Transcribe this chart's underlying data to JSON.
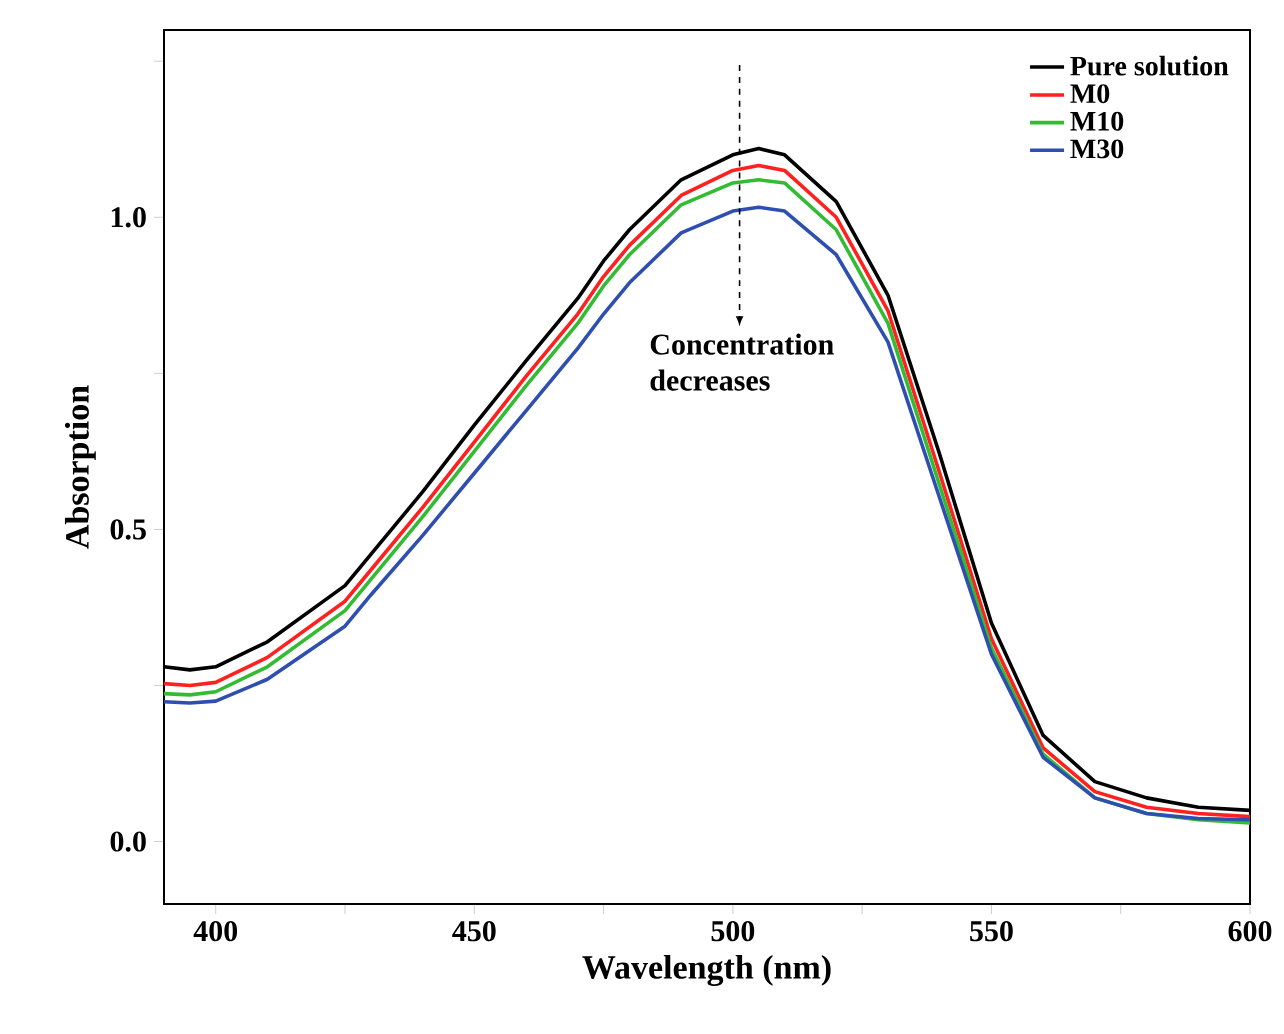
{
  "chart_data": {
    "type": "line",
    "xlabel": "Wavelength (nm)",
    "ylabel": "Absorption",
    "x": [
      390,
      395,
      400,
      410,
      425,
      430,
      440,
      450,
      460,
      470,
      475,
      480,
      490,
      500,
      505,
      510,
      520,
      530,
      540,
      550,
      560,
      570,
      580,
      590,
      600
    ],
    "series": [
      {
        "name": "Pure solution",
        "color": "#000000",
        "values": [
          0.28,
          0.275,
          0.28,
          0.32,
          0.41,
          0.46,
          0.56,
          0.667,
          0.77,
          0.87,
          0.93,
          0.98,
          1.06,
          1.1,
          1.11,
          1.1,
          1.025,
          0.875,
          0.62,
          0.35,
          0.17,
          0.096,
          0.07,
          0.055,
          0.05
        ]
      },
      {
        "name": "M0",
        "color": "#ff2020",
        "values": [
          0.253,
          0.25,
          0.255,
          0.295,
          0.385,
          0.435,
          0.535,
          0.64,
          0.745,
          0.845,
          0.905,
          0.955,
          1.035,
          1.075,
          1.083,
          1.075,
          1.0,
          0.85,
          0.59,
          0.325,
          0.15,
          0.08,
          0.055,
          0.045,
          0.04
        ]
      },
      {
        "name": "M10",
        "color": "#33bb33",
        "values": [
          0.237,
          0.235,
          0.24,
          0.28,
          0.37,
          0.42,
          0.52,
          0.625,
          0.73,
          0.83,
          0.89,
          0.94,
          1.02,
          1.055,
          1.06,
          1.055,
          0.98,
          0.83,
          0.57,
          0.31,
          0.14,
          0.07,
          0.045,
          0.035,
          0.03
        ]
      },
      {
        "name": "M30",
        "color": "#2e4fb0",
        "values": [
          0.224,
          0.222,
          0.225,
          0.26,
          0.345,
          0.395,
          0.49,
          0.59,
          0.69,
          0.79,
          0.845,
          0.895,
          0.975,
          1.01,
          1.016,
          1.01,
          0.94,
          0.8,
          0.55,
          0.3,
          0.135,
          0.07,
          0.045,
          0.037,
          0.035
        ]
      }
    ],
    "xlim": [
      390,
      600
    ],
    "ylim": [
      -0.1,
      1.3
    ],
    "xticks": [
      400,
      {
        "value": 425,
        "label": null
      },
      450,
      {
        "value": 475,
        "label": null
      },
      500,
      {
        "value": 525,
        "label": null
      },
      550,
      {
        "value": 575,
        "label": null
      },
      {
        "value": 600,
        "label": "600"
      }
    ],
    "yticks": [
      "0.0",
      {
        "value": 0.25,
        "label": null
      },
      {
        "value": 0.5,
        "label": "0.5"
      },
      {
        "value": 0.75,
        "label": null
      },
      {
        "value": 1.0,
        "label": "1.0"
      },
      {
        "value": 1.25,
        "label": null
      }
    ],
    "annotations": [
      "Concentration decreases"
    ],
    "legend": "top right",
    "grid": false,
    "marker": "none",
    "line_style": "solid"
  }
}
